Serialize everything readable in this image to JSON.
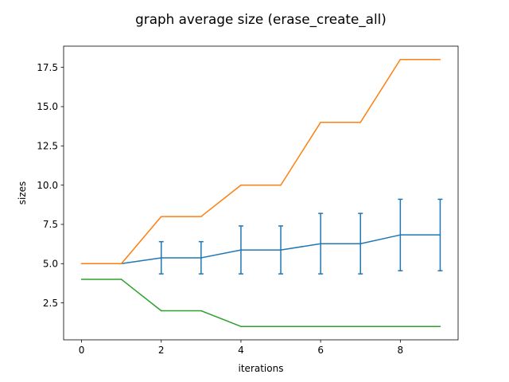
{
  "chart_data": {
    "type": "line",
    "title": "graph average size (erase_create_all)",
    "xlabel": "iterations",
    "ylabel": "sizes",
    "xlim": [
      -0.45,
      9.45
    ],
    "ylim": [
      0.15,
      18.85
    ],
    "x_ticks": [
      0,
      2,
      4,
      6,
      8
    ],
    "x_tick_labels": [
      "0",
      "2",
      "4",
      "6",
      "8"
    ],
    "y_ticks": [
      2.5,
      5.0,
      7.5,
      10.0,
      12.5,
      15.0,
      17.5
    ],
    "y_tick_labels": [
      "2.5",
      "5.0",
      "7.5",
      "10.0",
      "12.5",
      "15.0",
      "17.5"
    ],
    "grid": false,
    "x": [
      0,
      1,
      2,
      3,
      4,
      5,
      6,
      7,
      8,
      9
    ],
    "series": [
      {
        "color": "#1f77b4",
        "values": [
          5.0,
          5.0,
          5.37,
          5.37,
          5.87,
          5.87,
          6.27,
          6.27,
          6.83,
          6.83
        ],
        "error_low": [
          5.0,
          5.0,
          4.35,
          4.35,
          4.35,
          4.35,
          4.35,
          4.35,
          4.55,
          4.55
        ],
        "error_high": [
          5.0,
          5.0,
          6.4,
          6.4,
          7.4,
          7.4,
          8.2,
          8.2,
          9.1,
          9.1
        ]
      },
      {
        "color": "#ff7f0e",
        "values": [
          5,
          5,
          8,
          8,
          10,
          10,
          14,
          14,
          18,
          18
        ]
      },
      {
        "color": "#2ca02c",
        "values": [
          4,
          4,
          2,
          2,
          1,
          1,
          1,
          1,
          1,
          1
        ]
      }
    ]
  }
}
